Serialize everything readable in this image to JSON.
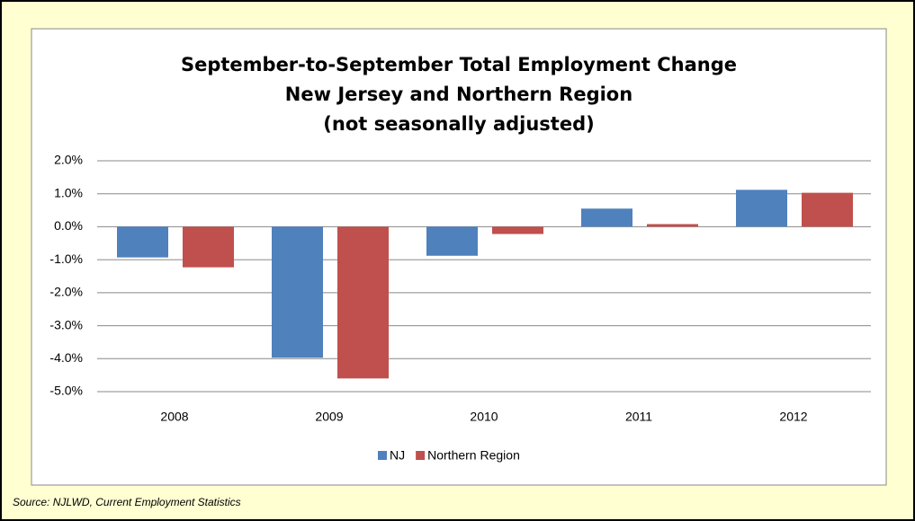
{
  "chart_data": {
    "type": "bar",
    "title": [
      "September-to-September Total Employment Change",
      "New Jersey and Northern Region",
      "(not seasonally adjusted)"
    ],
    "categories": [
      "2008",
      "2009",
      "2010",
      "2011",
      "2012"
    ],
    "series": [
      {
        "name": "NJ",
        "color": "#4f81bd",
        "values": [
          -0.93,
          -3.97,
          -0.88,
          0.55,
          1.12
        ]
      },
      {
        "name": "Northern Region",
        "color": "#c0504d",
        "values": [
          -1.23,
          -4.6,
          -0.22,
          0.08,
          1.03
        ]
      }
    ],
    "ylim": [
      -5,
      2
    ],
    "yticks": [
      {
        "value": -5,
        "label": "-5.0%"
      },
      {
        "value": -4,
        "label": "-4.0%"
      },
      {
        "value": -3,
        "label": "-3.0%"
      },
      {
        "value": -2,
        "label": "-2.0%"
      },
      {
        "value": -1,
        "label": "-1.0%"
      },
      {
        "value": 0,
        "label": "0.0%"
      },
      {
        "value": 1,
        "label": "1.0%"
      },
      {
        "value": 2,
        "label": "2.0%"
      }
    ],
    "grid": true,
    "legend": "bottom",
    "source": "Source: NJLWD, Current Employment Statistics"
  }
}
